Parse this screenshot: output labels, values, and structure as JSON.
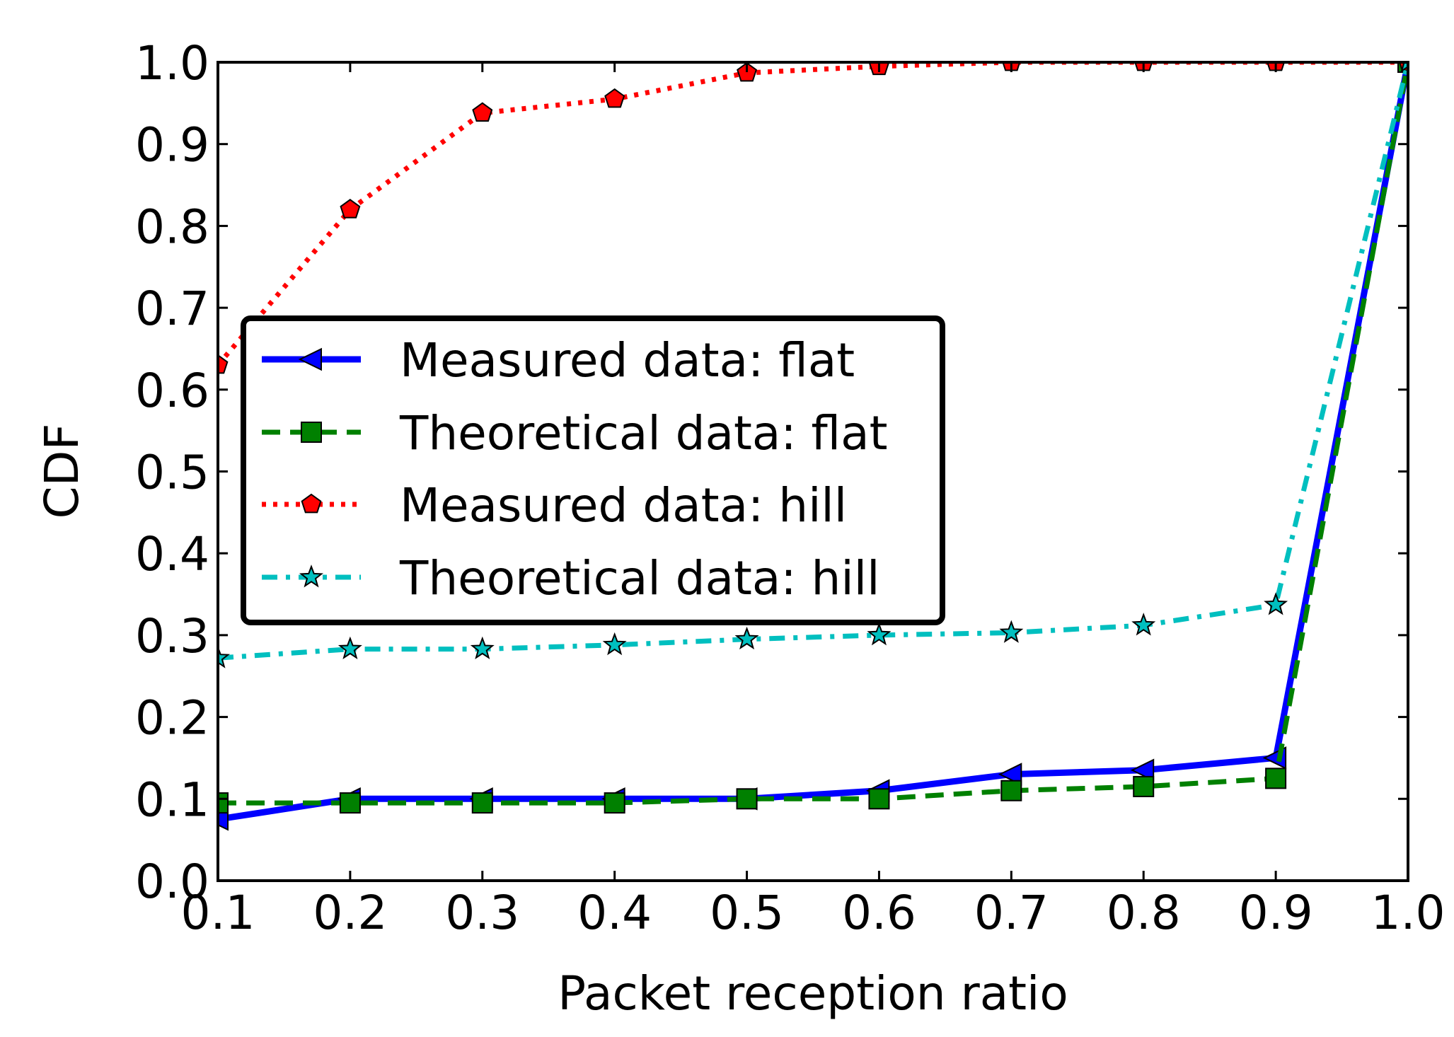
{
  "chart_data": {
    "type": "line",
    "xlabel": "Packet reception ratio",
    "ylabel": "CDF",
    "xlim": [
      0.1,
      1.0
    ],
    "ylim": [
      0.0,
      1.0
    ],
    "x_ticks": [
      "0.1",
      "0.2",
      "0.3",
      "0.4",
      "0.5",
      "0.6",
      "0.7",
      "0.8",
      "0.9",
      "1.0"
    ],
    "y_ticks": [
      "0.0",
      "0.1",
      "0.2",
      "0.3",
      "0.4",
      "0.5",
      "0.6",
      "0.7",
      "0.8",
      "0.9",
      "1.0"
    ],
    "x": [
      0.1,
      0.2,
      0.3,
      0.4,
      0.5,
      0.6,
      0.7,
      0.8,
      0.9,
      1.0
    ],
    "legend_position": "center-left",
    "series": [
      {
        "name": "Measured data: flat",
        "color": "#0000ff",
        "line_style": "solid",
        "marker": "triangle-left",
        "marker_color": "#0000ff",
        "values": [
          0.075,
          0.1,
          0.1,
          0.1,
          0.1,
          0.11,
          0.13,
          0.135,
          0.15,
          1.0
        ]
      },
      {
        "name": "Theoretical data: flat",
        "color": "#008000",
        "line_style": "dashed",
        "marker": "square",
        "marker_color": "#008000",
        "values": [
          0.095,
          0.095,
          0.095,
          0.095,
          0.1,
          0.1,
          0.11,
          0.115,
          0.125,
          1.0
        ]
      },
      {
        "name": "Measured data: hill",
        "color": "#ff0000",
        "line_style": "dotted",
        "marker": "pentagon",
        "marker_color": "#ff0000",
        "values": [
          0.63,
          0.82,
          0.938,
          0.955,
          0.987,
          0.995,
          1.0,
          1.0,
          1.0,
          1.0
        ]
      },
      {
        "name": "Theoretical data: hill",
        "color": "#00bfbf",
        "line_style": "dashdot",
        "marker": "star",
        "marker_color": "#00bfbf",
        "values": [
          0.272,
          0.283,
          0.283,
          0.288,
          0.295,
          0.3,
          0.303,
          0.312,
          0.337,
          1.0
        ]
      }
    ]
  }
}
